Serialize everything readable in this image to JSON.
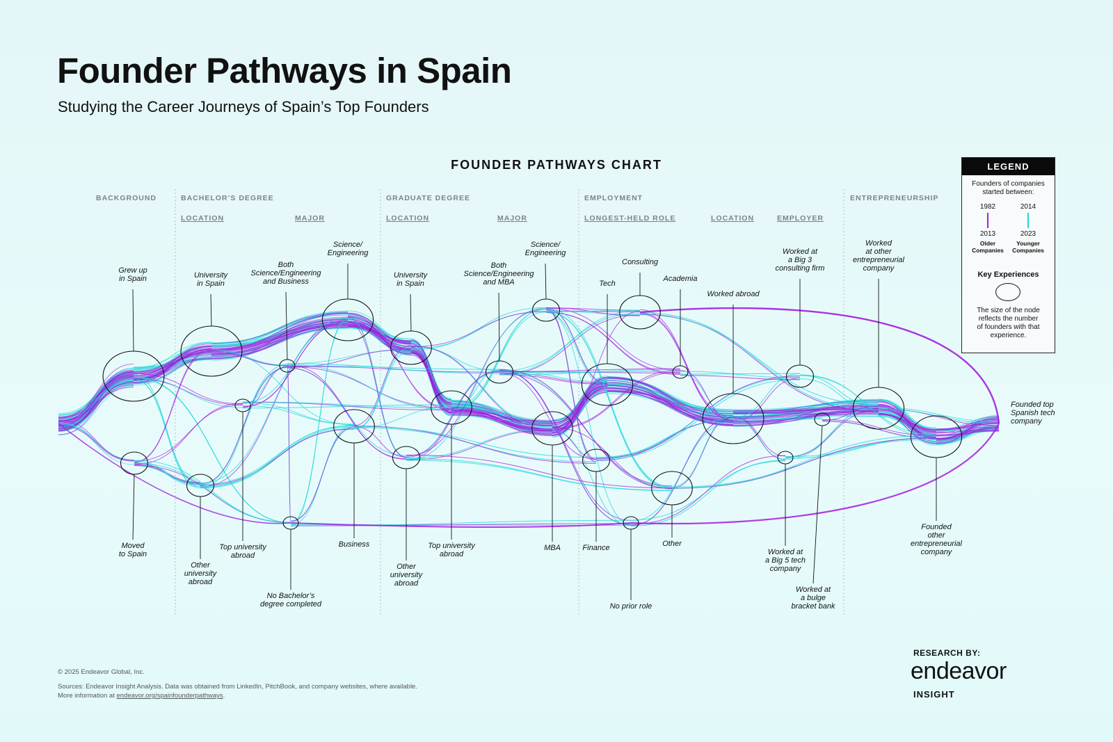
{
  "header": {
    "title": "Founder Pathways in Spain",
    "subtitle": "Studying the Career Journeys of Spain’s Top Founders",
    "chart_title": "FOUNDER PATHWAYS CHART"
  },
  "stages": [
    {
      "label": "BACKGROUND"
    },
    {
      "label": "BACHELOR’S DEGREE"
    },
    {
      "label": "GRADUATE DEGREE"
    },
    {
      "label": "EMPLOYMENT"
    },
    {
      "label": "ENTREPRENEURSHIP"
    }
  ],
  "substages": [
    {
      "label": "LOCATION"
    },
    {
      "label": "MAJOR"
    },
    {
      "label": "LOCATION"
    },
    {
      "label": "MAJOR"
    },
    {
      "label": "LONGEST-HELD ROLE"
    },
    {
      "label": "LOCATION"
    },
    {
      "label": "EMPLOYER"
    }
  ],
  "nodes": [
    {
      "label": "Grew up\nin Spain",
      "size": 5
    },
    {
      "label": "Moved\nto Spain",
      "size": 2
    },
    {
      "label": "University\nin Spain",
      "size": 5
    },
    {
      "label": "Other\nuniversity\nabroad",
      "size": 2
    },
    {
      "label": "Top university\nabroad",
      "size": 1
    },
    {
      "label": "No Bachelor’s\ndegree completed",
      "size": 1
    },
    {
      "label": "Both\nScience/Engineering\nand Business",
      "size": 1
    },
    {
      "label": "Science/\nEngineering",
      "size": 4
    },
    {
      "label": "Business",
      "size": 3
    },
    {
      "label": "University\nin Spain",
      "size": 3
    },
    {
      "label": "Other\nuniversity\nabroad",
      "size": 2
    },
    {
      "label": "Top university\nabroad",
      "size": 3
    },
    {
      "label": "Both\nScience/Engineering\nand MBA",
      "size": 2
    },
    {
      "label": "Science/\nEngineering",
      "size": 2
    },
    {
      "label": "MBA",
      "size": 3
    },
    {
      "label": "Consulting",
      "size": 3
    },
    {
      "label": "Tech",
      "size": 4
    },
    {
      "label": "Finance",
      "size": 2
    },
    {
      "label": "No prior role",
      "size": 1
    },
    {
      "label": "Academia",
      "size": 1
    },
    {
      "label": "Other",
      "size": 3
    },
    {
      "label": "Worked abroad",
      "size": 5
    },
    {
      "label": "Worked at\na Big 3\nconsulting firm",
      "size": 2
    },
    {
      "label": "Worked at\na Big 5 tech\ncompany",
      "size": 1
    },
    {
      "label": "Worked at\na bulge\nbracket bank",
      "size": 1
    },
    {
      "label": "Worked\nat other\nentrepreneurial\ncompany",
      "size": 4
    },
    {
      "label": "Founded\nother\nentrepreneurial\ncompany",
      "size": 4
    },
    {
      "label": "Founded top\nSpanish tech\ncompany",
      "size": 0
    }
  ],
  "legend": {
    "title": "LEGEND",
    "intro": "Founders of companies\nstarted between:",
    "older": {
      "from": "1982",
      "to": "2013",
      "label": "Older\nCompanies"
    },
    "younger": {
      "from": "2014",
      "to": "2023",
      "label": "Younger\nCompanies"
    },
    "key_title": "Key Experiences",
    "key_text": "The size of the node\nreflects the number\nof founders with that\nexperience."
  },
  "colors": {
    "older": "#a21de0",
    "younger": "#19d6d6"
  },
  "footer": {
    "copyright": "© 2025 Endeavor Global, Inc.",
    "sources": "Sources:  Endeavor Insight Analysis. Data was obtained from LinkedIn, PitchBook, and company websites, where available.",
    "more_prefix": "More information at ",
    "more_link": "endeavor.org/spainfounderpathways",
    "more_suffix": "."
  },
  "brand": {
    "research_by": "RESEARCH BY:",
    "name": "endeavor",
    "sub": "INSIGHT"
  }
}
